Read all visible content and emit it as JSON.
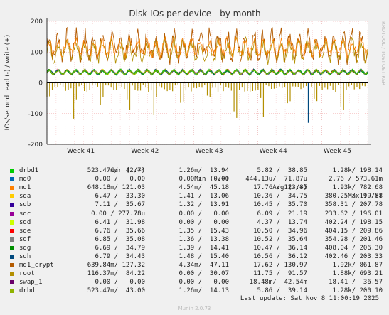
{
  "chart_data": {
    "type": "line",
    "title": "Disk IOs per device - by month",
    "ylabel": "IOs/second read (-) / write (+)",
    "ylim": [
      -200,
      200
    ],
    "yticks": [
      -200,
      -100,
      0,
      100,
      200
    ],
    "xticks": [
      "Week 41",
      "Week 42",
      "Week 43",
      "Week 44",
      "Week 45"
    ],
    "grid": true,
    "side_text": "RRDTOOL / TOBI OETIKER",
    "series_visual": {
      "root_write_band": [
        60,
        180
      ],
      "md1_write_band": [
        30,
        120
      ],
      "sd_write_band": [
        25,
        45
      ],
      "read_spike_min": -120,
      "root_read_spike_min": -130
    }
  },
  "legend": {
    "headers": {
      "cur": "Cur (-/+)",
      "min": "Min (-/+)",
      "avg": "Avg (-/+)",
      "max": "Max (-/+)"
    },
    "rows": [
      {
        "name": "drbd1",
        "color": "#00cc00",
        "cur": "523.47m/  42.74",
        "min": "1.26m/  13.94",
        "avg": "5.82 /  38.85",
        "max": "1.28k/ 198.14"
      },
      {
        "name": "md0",
        "color": "#0066b3",
        "cur": "0.00 /   0.00",
        "min": "0.00 /   0.00",
        "avg": "444.13u/  71.87u",
        "max": "2.76 / 573.61m"
      },
      {
        "name": "md1",
        "color": "#ff8000",
        "cur": "648.18m/ 121.03",
        "min": "4.54m/  45.18",
        "avg": "17.76 / 123.85",
        "max": "1.93k/ 782.68"
      },
      {
        "name": "sda",
        "color": "#ffcc00",
        "cur": "6.47 /  33.30",
        "min": "1.41 /  13.06",
        "avg": "10.36 /  34.75",
        "max": "380.25 / 199.88"
      },
      {
        "name": "sdb",
        "color": "#330099",
        "cur": "7.11 /  35.67",
        "min": "1.32 /  13.91",
        "avg": "10.45 /  35.70",
        "max": "358.31 / 207.78"
      },
      {
        "name": "sdc",
        "color": "#990099",
        "cur": "0.00 / 277.78u",
        "min": "0.00 /   0.00",
        "avg": "6.09 /  21.19",
        "max": "233.62 / 196.01"
      },
      {
        "name": "sdd",
        "color": "#ccff00",
        "cur": "6.41 /  31.98",
        "min": "0.00 /   0.00",
        "avg": "4.37 /  13.74",
        "max": "402.24 / 198.15"
      },
      {
        "name": "sde",
        "color": "#ff0000",
        "cur": "6.76 /  35.66",
        "min": "1.35 /  15.43",
        "avg": "10.50 /  34.96",
        "max": "404.15 / 209.86"
      },
      {
        "name": "sdf",
        "color": "#808080",
        "cur": "6.85 /  35.08",
        "min": "1.36 /  13.38",
        "avg": "10.52 /  35.64",
        "max": "354.28 / 201.46"
      },
      {
        "name": "sdg",
        "color": "#008f00",
        "cur": "6.69 /  34.79",
        "min": "1.39 /  14.41",
        "avg": "10.47 /  36.14",
        "max": "408.04 / 206.30"
      },
      {
        "name": "sdh",
        "color": "#00487d",
        "cur": "6.79 /  34.43",
        "min": "1.48 /  15.40",
        "avg": "10.56 /  36.12",
        "max": "402.46 / 203.33"
      },
      {
        "name": "md1_crypt",
        "color": "#b35a00",
        "cur": "639.84m/ 127.32",
        "min": "4.34m/  47.11",
        "avg": "17.62 / 130.97",
        "max": "1.92k/ 861.87"
      },
      {
        "name": "root",
        "color": "#b38f00",
        "cur": "116.37m/  84.22",
        "min": "0.00 /  30.07",
        "avg": "11.75 /  91.57",
        "max": "1.88k/ 693.21"
      },
      {
        "name": "swap_1",
        "color": "#6b006b",
        "cur": "0.00 /   0.00",
        "min": "0.00 /   0.00",
        "avg": "18.48m/  42.54m",
        "max": "18.41 /  36.57"
      },
      {
        "name": "drbd",
        "color": "#8fb300",
        "cur": "523.47m/  43.00",
        "min": "1.26m/  14.13",
        "avg": "5.86 /  39.14",
        "max": "1.28k/ 200.10"
      }
    ]
  },
  "footer": {
    "last_update": "Last update: Sat Nov  8 11:00:19 2025",
    "munin": "Munin 2.0.73"
  }
}
